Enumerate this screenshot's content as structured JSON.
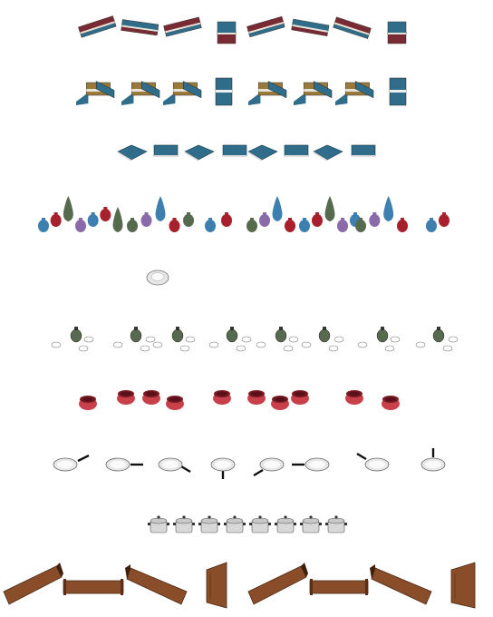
{
  "sheet": {
    "background": "#ffffff",
    "rows": [
      {
        "name": "book-stacks-red",
        "asset": "book",
        "variants": 8
      },
      {
        "name": "book-stacks-mixed",
        "asset": "book-stack",
        "variants": 8
      },
      {
        "name": "books-flat-blue",
        "asset": "book-flat",
        "variants": 8
      },
      {
        "name": "vase-clusters",
        "asset": "vase-cluster",
        "variants": 8
      },
      {
        "name": "plate-single",
        "asset": "plate",
        "variants": 1
      },
      {
        "name": "teapot-cup-sets",
        "asset": "teapot-set",
        "variants": 8
      },
      {
        "name": "red-bowl-pairs",
        "asset": "bowl-pair",
        "variants": 8
      },
      {
        "name": "frying-pans",
        "asset": "pan",
        "variants": 8
      },
      {
        "name": "cooking-pots",
        "asset": "pot",
        "variants": 8
      },
      {
        "name": "wooden-trays",
        "asset": "tray",
        "variants": 8
      }
    ]
  },
  "colors": {
    "book_red": "#7a2a33",
    "book_blue": "#2f6d8a",
    "book_tan": "#9a7a3a",
    "vase_blue": "#3d7fae",
    "vase_red": "#a8202c",
    "vase_green": "#566b4e",
    "vase_purple": "#8a6aa8",
    "ceramic": "#e6e6e6",
    "bowl_red": "#c8404a",
    "wood": "#8a4d2a"
  }
}
